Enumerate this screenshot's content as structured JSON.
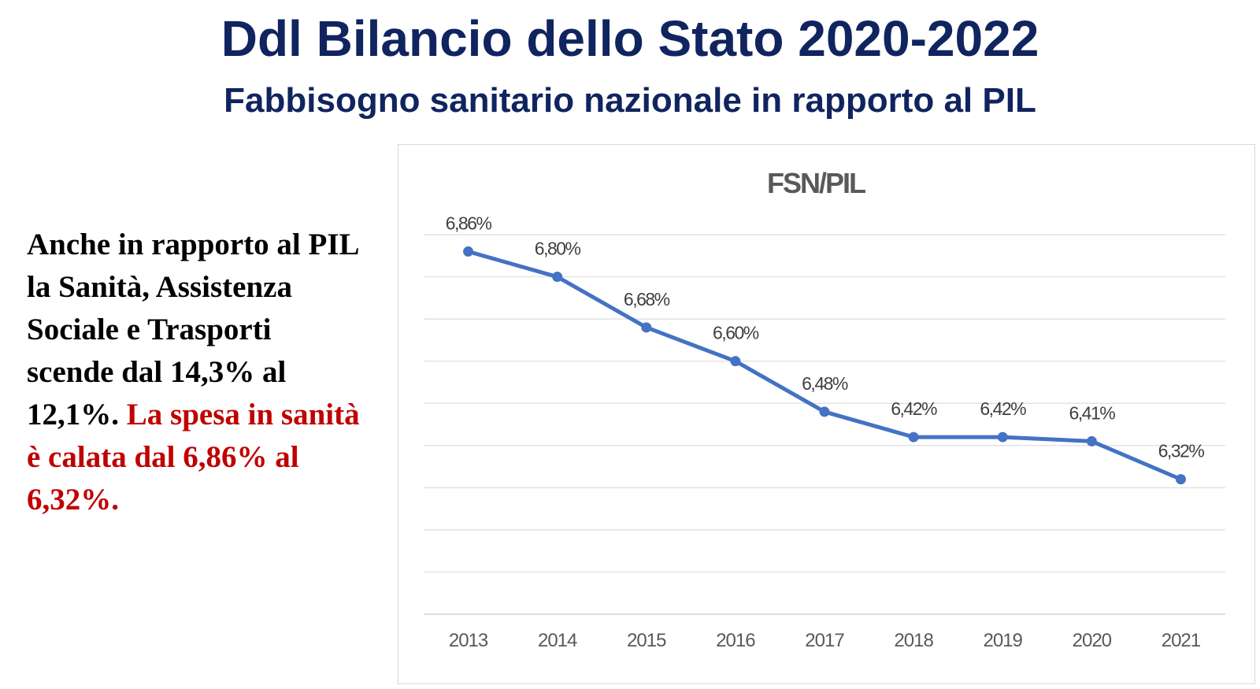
{
  "header": {
    "title": "Ddl Bilancio dello Stato 2020-2022",
    "subtitle": "Fabbisogno sanitario nazionale in rapporto al PIL"
  },
  "note": {
    "text_black": "Anche in rapporto al PIL la Sanità, Assistenza Sociale e Trasporti scende dal 14,3% al 12,1%. ",
    "text_red": "La spesa in sanità è calata dal 6,86% al 6,32%.",
    "color_black": "#000000",
    "color_red": "#c00000"
  },
  "chart_data": {
    "type": "line",
    "title": "FSN/PIL",
    "categories": [
      "2013",
      "2014",
      "2015",
      "2016",
      "2017",
      "2018",
      "2019",
      "2020",
      "2021"
    ],
    "series": [
      {
        "values": [
          6.86,
          6.8,
          6.68,
          6.6,
          6.48,
          6.42,
          6.42,
          6.41,
          6.32
        ],
        "labels": [
          "6,86%",
          "6,80%",
          "6,68%",
          "6,60%",
          "6,48%",
          "6,42%",
          "6,42%",
          "6,41%",
          "6,32%"
        ],
        "color": "#4472c4"
      }
    ],
    "grid": true,
    "legend": "none"
  }
}
